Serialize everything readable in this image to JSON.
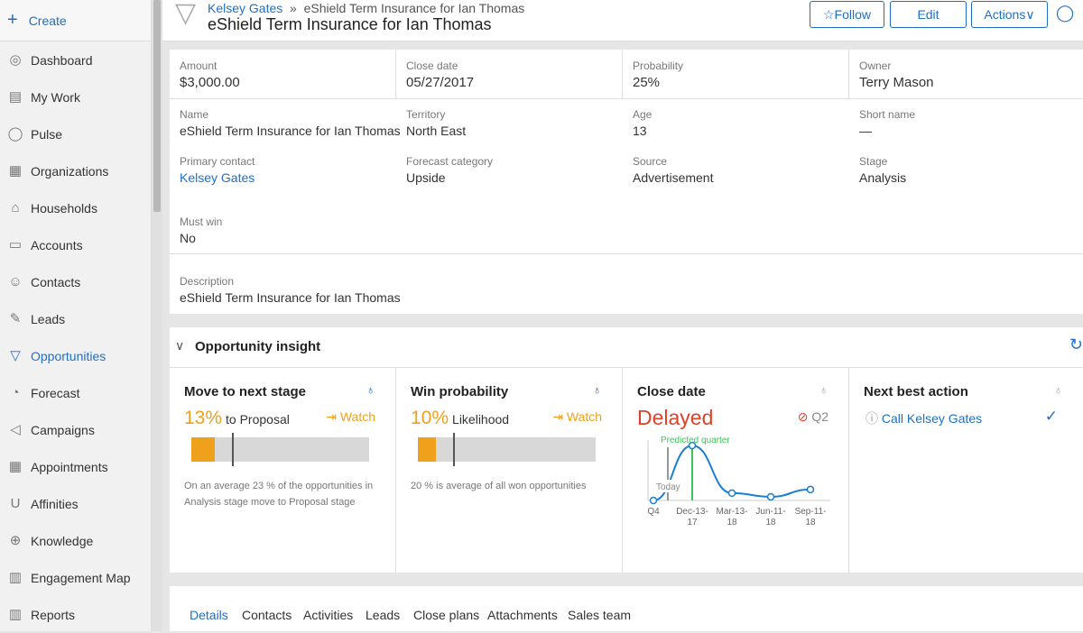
{
  "sidebar": {
    "create": "Create",
    "items": [
      {
        "label": "Dashboard",
        "icon": "dashboard-icon",
        "glyph": "◎"
      },
      {
        "label": "My Work",
        "icon": "my-work-icon",
        "glyph": "▤"
      },
      {
        "label": "Pulse",
        "icon": "pulse-icon",
        "glyph": "◯"
      },
      {
        "label": "Organizations",
        "icon": "organizations-icon",
        "glyph": "▦"
      },
      {
        "label": "Households",
        "icon": "households-icon",
        "glyph": "⌂"
      },
      {
        "label": "Accounts",
        "icon": "accounts-icon",
        "glyph": "▭"
      },
      {
        "label": "Contacts",
        "icon": "contacts-icon",
        "glyph": "☺"
      },
      {
        "label": "Leads",
        "icon": "leads-icon",
        "glyph": "✎"
      },
      {
        "label": "Opportunities",
        "icon": "opportunities-icon",
        "glyph": "▽",
        "active": true
      },
      {
        "label": "Forecast",
        "icon": "forecast-icon",
        "glyph": "◔"
      },
      {
        "label": "Campaigns",
        "icon": "campaigns-icon",
        "glyph": "◁"
      },
      {
        "label": "Appointments",
        "icon": "appointments-icon",
        "glyph": "▦"
      },
      {
        "label": "Affinities",
        "icon": "affinities-icon",
        "glyph": "U"
      },
      {
        "label": "Knowledge",
        "icon": "knowledge-icon",
        "glyph": "⊕"
      },
      {
        "label": "Engagement Map",
        "icon": "engagement-map-icon",
        "glyph": "▥"
      },
      {
        "label": "Reports",
        "icon": "reports-icon",
        "glyph": "▥"
      }
    ]
  },
  "header": {
    "breadcrumb_link": "Kelsey Gates",
    "breadcrumb_sep": "»",
    "breadcrumb_current": "eShield Term Insurance for Ian Thomas",
    "title": "eShield Term Insurance for Ian Thomas",
    "follow": "☆Follow",
    "edit": "Edit",
    "actions": "Actions∨"
  },
  "summary": [
    {
      "label": "Amount",
      "value": "$3,000.00"
    },
    {
      "label": "Close date",
      "value": "05/27/2017"
    },
    {
      "label": "Probability",
      "value": "25%"
    },
    {
      "label": "Owner",
      "value": "Terry Mason"
    }
  ],
  "details": [
    {
      "label": "Name",
      "value": "eShield Term Insurance for Ian Thomas"
    },
    {
      "label": "Territory",
      "value": "North East"
    },
    {
      "label": "Age",
      "value": "13"
    },
    {
      "label": "Short name",
      "value": "—"
    },
    {
      "label": "Primary contact",
      "value": "Kelsey Gates"
    },
    {
      "label": "Forecast category",
      "value": "Upside"
    },
    {
      "label": "Source",
      "value": "Advertisement"
    },
    {
      "label": "Stage",
      "value": "Analysis"
    },
    {
      "label": "Must win",
      "value": "No"
    }
  ],
  "description": {
    "label": "Description",
    "value": "eShield Term Insurance for Ian Thomas"
  },
  "insight": {
    "title": "Opportunity insight",
    "next_stage": {
      "title": "Move to next stage",
      "pct": "13%",
      "to": "to  Proposal",
      "watch": "Watch",
      "fill": 13,
      "average": 23,
      "note": "On an average 23 % of the opportunities in Analysis   stage move to Proposal  stage"
    },
    "win": {
      "title": "Win probability",
      "pct": "10%",
      "to": "Likelihood",
      "watch": "Watch",
      "fill": 10,
      "average": 20,
      "note": "20 % is  average of all won opportunities"
    },
    "close": {
      "title": "Close date",
      "status": "Delayed",
      "quarter": "Q2",
      "predicted": "Predicted quarter",
      "today": "Today"
    },
    "nba": {
      "title": "Next best action",
      "action": "Call Kelsey Gates"
    }
  },
  "chart_data": {
    "type": "line",
    "categories": [
      "Q4",
      "Dec-13-17",
      "Mar-13-18",
      "Jun-11-18",
      "Sep-11-18"
    ],
    "tick_labels": [
      [
        "Q4"
      ],
      [
        "Dec-13-",
        "17"
      ],
      [
        "Mar-13-",
        "18"
      ],
      [
        "Jun-11-",
        "18"
      ],
      [
        "Sep-11-",
        "18"
      ]
    ],
    "values": [
      0,
      0.75,
      0.1,
      0.05,
      0.15
    ],
    "annotations": [
      "Predicted quarter",
      "Today"
    ],
    "colors": {
      "line": "#1a7fd0",
      "predicted": "#3cc45a",
      "today": "#999999"
    }
  },
  "tabs": [
    "Details",
    "Contacts",
    "Activities",
    "Leads",
    "Close plans",
    "Attachments",
    "Sales team"
  ],
  "colors": {
    "accent": "#1f6fc5",
    "warning": "#f0a11c",
    "delayed": "#e0402a"
  }
}
